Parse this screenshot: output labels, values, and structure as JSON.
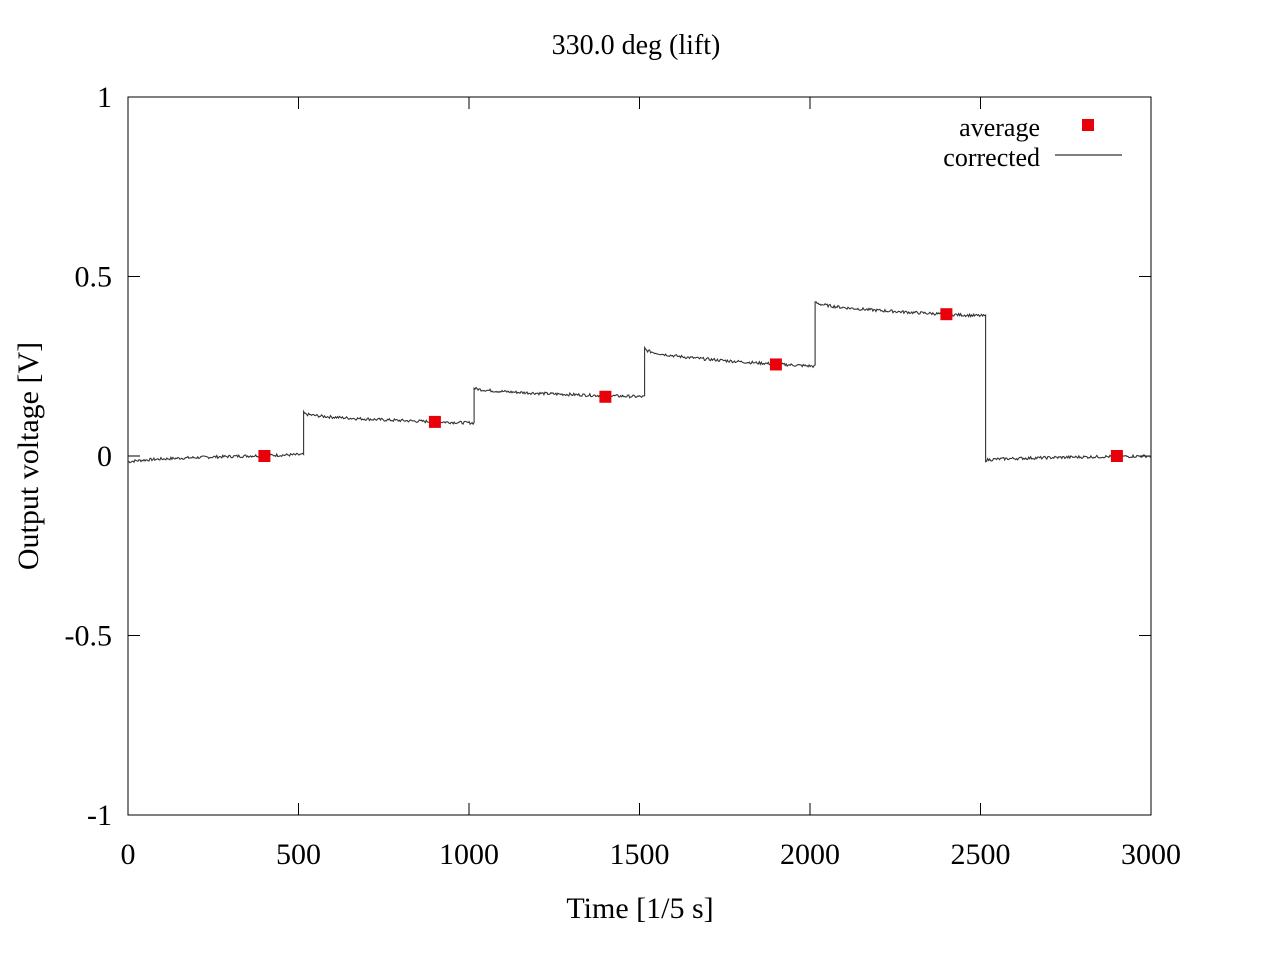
{
  "chart_data": {
    "type": "line",
    "title": "330.0 deg (lift)",
    "xlabel": "Time [1/5 s]",
    "ylabel": "Output voltage [V]",
    "xlim": [
      0,
      3000
    ],
    "ylim": [
      -1,
      1
    ],
    "x_ticks": [
      0,
      500,
      1000,
      1500,
      2000,
      2500,
      3000
    ],
    "y_ticks": [
      -1,
      -0.5,
      0,
      0.5,
      1
    ],
    "x_tick_labels": [
      "0",
      "500",
      "1000",
      "1500",
      "2000",
      "2500",
      "3000"
    ],
    "y_tick_labels": [
      "-1",
      "-0.5",
      "0",
      "0.5",
      "1"
    ],
    "grid": false,
    "legend_position": "top-right",
    "series": [
      {
        "name": "average",
        "kind": "points",
        "marker": "square",
        "color": "#e8000b",
        "x": [
          400,
          900,
          1400,
          1900,
          2400,
          2900
        ],
        "y": [
          0.0,
          0.095,
          0.165,
          0.255,
          0.395,
          0.0
        ]
      },
      {
        "name": "corrected",
        "kind": "line",
        "color": "#333333",
        "segments": [
          {
            "x0": 0,
            "x1": 515,
            "y_start": -0.018,
            "y_end": 0.004
          },
          {
            "x0": 515,
            "x1": 1015,
            "y_start": 0.12,
            "y_end": 0.092
          },
          {
            "x0": 1015,
            "x1": 1515,
            "y_start": 0.19,
            "y_end": 0.165
          },
          {
            "x0": 1515,
            "x1": 2015,
            "y_start": 0.3,
            "y_end": 0.25
          },
          {
            "x0": 2015,
            "x1": 2515,
            "y_start": 0.43,
            "y_end": 0.39
          },
          {
            "x0": 2515,
            "x1": 3000,
            "y_start": -0.012,
            "y_end": 0.0
          }
        ]
      }
    ]
  }
}
